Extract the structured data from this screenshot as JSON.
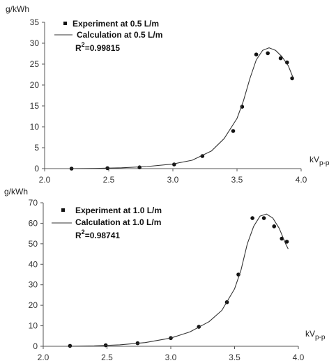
{
  "chart_data": [
    {
      "type": "line",
      "ylabel": "g/kWh",
      "xlabel_main": "kV",
      "xlabel_sub": "p-p",
      "xlim": [
        2.0,
        4.0
      ],
      "ylim": [
        0,
        35
      ],
      "xticks": [
        "2.0",
        "2.5",
        "3.0",
        "3.5",
        "4.0"
      ],
      "yticks": [
        "0",
        "5",
        "10",
        "15",
        "20",
        "25",
        "30",
        "35"
      ],
      "xtick_values": [
        2.0,
        2.5,
        3.0,
        3.5,
        4.0
      ],
      "ytick_values": [
        0,
        5,
        10,
        15,
        20,
        25,
        30,
        35
      ],
      "legend": {
        "experiment_label": "Experiment at 0.5 L/m",
        "calculation_label": "Calculation at 0.5 L/m",
        "r2_prefix": "R",
        "r2_sup": "2",
        "r2_value": "=0.99815"
      },
      "series": [
        {
          "name": "Experiment at 0.5 L/m",
          "style": "markers",
          "x": [
            2.21,
            2.49,
            2.74,
            3.01,
            3.23,
            3.47,
            3.54,
            3.65,
            3.74,
            3.84,
            3.89,
            3.93
          ],
          "y": [
            0.0,
            0.1,
            0.3,
            1.0,
            3.0,
            9.0,
            14.8,
            27.3,
            27.6,
            26.4,
            25.4,
            21.6
          ]
        },
        {
          "name": "Calculation at 0.5 L/m",
          "style": "line",
          "x": [
            2.2,
            2.4,
            2.6,
            2.8,
            3.0,
            3.15,
            3.3,
            3.4,
            3.5,
            3.55,
            3.6,
            3.65,
            3.7,
            3.75,
            3.8,
            3.85,
            3.9,
            3.94
          ],
          "y": [
            0.0,
            0.05,
            0.2,
            0.5,
            1.1,
            2.0,
            4.2,
            7.2,
            12.0,
            16.2,
            21.5,
            26.0,
            28.3,
            28.9,
            28.3,
            26.8,
            24.6,
            21.5
          ]
        }
      ]
    },
    {
      "type": "line",
      "ylabel": "g/kWh",
      "xlabel_main": "kV",
      "xlabel_sub": "p-p",
      "xlim": [
        2.0,
        4.0
      ],
      "ylim": [
        0,
        70
      ],
      "xticks": [
        "2.0",
        "2.5",
        "3.0",
        "3.5",
        "4.0"
      ],
      "yticks": [
        "0",
        "10",
        "20",
        "30",
        "40",
        "50",
        "60",
        "70"
      ],
      "xtick_values": [
        2.0,
        2.5,
        3.0,
        3.5,
        4.0
      ],
      "ytick_values": [
        0,
        10,
        20,
        30,
        40,
        50,
        60,
        70
      ],
      "legend": {
        "experiment_label": "Experiment at 1.0 L/m",
        "calculation_label": "Calculation at 1.0 L/m",
        "r2_prefix": "R",
        "r2_sup": "2",
        "r2_value": "=0.98741"
      },
      "series": [
        {
          "name": "Experiment at 1.0 L/m",
          "style": "markers",
          "x": [
            2.21,
            2.49,
            2.74,
            3.0,
            3.22,
            3.44,
            3.53,
            3.64,
            3.73,
            3.81,
            3.87,
            3.91
          ],
          "y": [
            0.2,
            0.5,
            1.5,
            4.0,
            9.5,
            21.5,
            35.0,
            62.5,
            62.5,
            58.5,
            52.5,
            51.0
          ]
        },
        {
          "name": "Calculation at 1.0 L/m",
          "style": "line",
          "x": [
            2.2,
            2.4,
            2.6,
            2.8,
            3.0,
            3.15,
            3.3,
            3.4,
            3.5,
            3.55,
            3.6,
            3.65,
            3.7,
            3.75,
            3.8,
            3.85,
            3.9,
            3.92
          ],
          "y": [
            0.0,
            0.2,
            0.7,
            1.8,
            4.0,
            7.0,
            12.0,
            17.5,
            28.0,
            37.0,
            50.0,
            58.5,
            63.5,
            64.5,
            62.5,
            57.5,
            50.0,
            47.5
          ]
        }
      ]
    }
  ]
}
